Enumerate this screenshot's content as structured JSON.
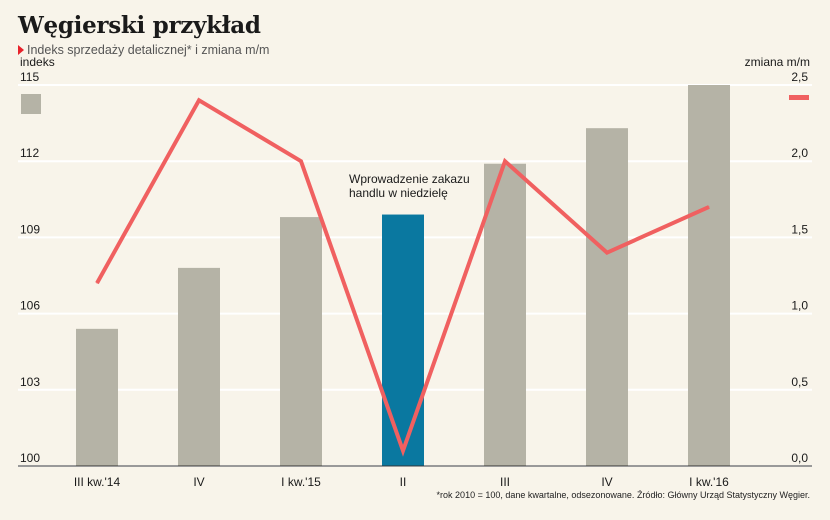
{
  "title": "Węgierski przykład",
  "subtitle": "Indeks sprzedaży detalicznej* i zmiana m/m",
  "footnote": "*rok 2010 = 100, dane kwartalne, odsezonowane. Źródło: Główny Urząd Statystyczny Węgier.",
  "annotation": [
    "Wprowadzenie zakazu",
    "handlu w niedzielę"
  ],
  "colors": {
    "background": "#f8f4ea",
    "bar": "#b5b3a6",
    "bar_highlight": "#0a78a0",
    "line": "#f06060",
    "grid": "#ffffff",
    "text": "#1a1a1a"
  },
  "chart_data": {
    "type": "bar",
    "categories": [
      "III kw.'14",
      "IV",
      "I kw.'15",
      "II",
      "III",
      "IV",
      "I kw.'16"
    ],
    "highlight_index": 3,
    "series": [
      {
        "name": "indeks",
        "type": "bar",
        "axis": "left",
        "values": [
          105.4,
          107.8,
          109.8,
          109.9,
          111.9,
          113.3,
          115.0
        ]
      },
      {
        "name": "zmiana m/m",
        "type": "line",
        "axis": "right",
        "values": [
          1.2,
          2.4,
          2.0,
          0.1,
          2.0,
          1.4,
          1.7
        ]
      }
    ],
    "y_left": {
      "label": "indeks",
      "ylim": [
        100,
        115
      ],
      "ticks": [
        "100",
        "103",
        "106",
        "109",
        "112",
        "115"
      ]
    },
    "y_right": {
      "label": "zmiana m/m",
      "ylim": [
        0,
        2.5
      ],
      "ticks": [
        "0,0",
        "0,5",
        "1,0",
        "1,5",
        "2,0",
        "2,5"
      ]
    },
    "grid": true,
    "legend": "inline-axis-labels"
  }
}
